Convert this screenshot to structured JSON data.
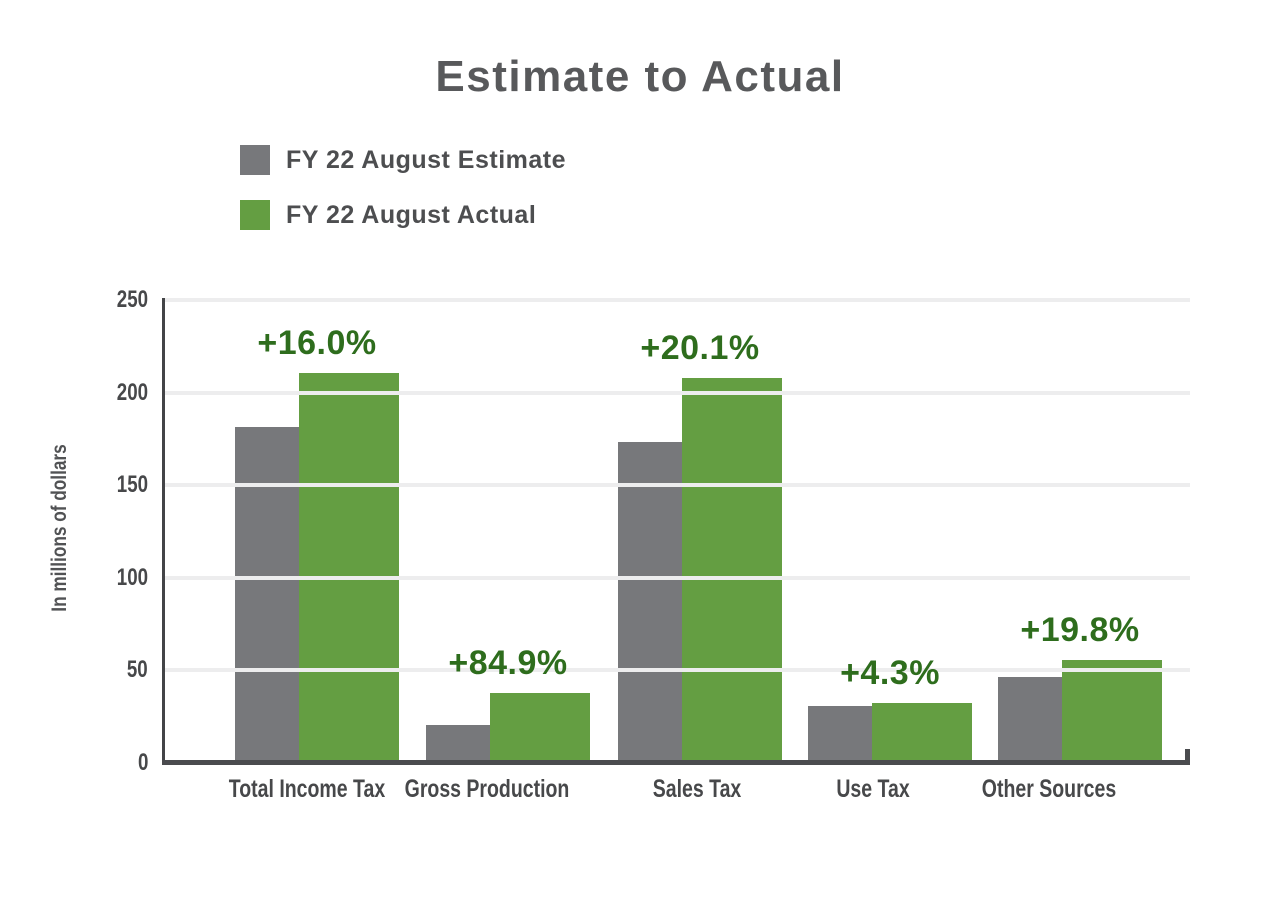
{
  "title": "Estimate to Actual",
  "legend": [
    {
      "label": "FY 22 August Estimate",
      "color": "#77787b"
    },
    {
      "label": "FY 22 August Actual",
      "color": "#649e42"
    }
  ],
  "colors": {
    "estimate_bar": "#77787b",
    "actual_bar": "#649e42",
    "pct_text": "#2e6d1d",
    "axis_line": "#4a4b4e",
    "gridline": "#ededee",
    "title_text": "#58595b",
    "tick_text": "#47484a"
  },
  "chart_data": {
    "type": "bar",
    "title": "Estimate to Actual",
    "xlabel": "",
    "ylabel": "In millions of dollars",
    "ylim": [
      0,
      250
    ],
    "yticks": [
      0,
      50,
      100,
      150,
      200,
      250
    ],
    "grid": true,
    "legend_position": "top-left",
    "categories": [
      "Total Income Tax",
      "Gross Production",
      "Sales Tax",
      "Use Tax",
      "Other Sources"
    ],
    "series": [
      {
        "name": "FY 22 August Estimate",
        "color": "#77787b",
        "values": [
          181.5,
          20.3,
          173.2,
          30.6,
          46.1
        ]
      },
      {
        "name": "FY 22 August Actual",
        "color": "#649e42",
        "values": [
          210.5,
          37.5,
          208.0,
          31.9,
          55.2
        ]
      }
    ],
    "annotations": [
      {
        "category": "Total Income Tax",
        "label": "+16.0%"
      },
      {
        "category": "Gross Production",
        "label": "+84.9%"
      },
      {
        "category": "Sales Tax",
        "label": "+20.1%"
      },
      {
        "category": "Use Tax",
        "label": "+4.3%"
      },
      {
        "category": "Other Sources",
        "label": "+19.8%"
      }
    ]
  }
}
